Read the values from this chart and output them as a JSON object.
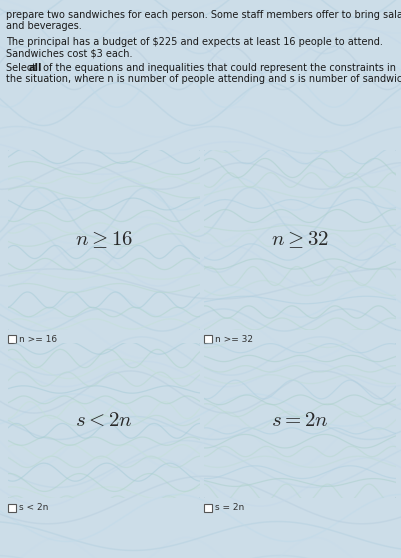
{
  "bg_color": "#ccdde8",
  "card_bg": "#d4e8f0",
  "text_color": "#1a1a1a",
  "header_lines": [
    "prepare two sandwiches for each person. Some staff members offer to bring salads",
    "and beverages.",
    "The principal has a budget of $225 and expects at least 16 people to attend.",
    "Sandwiches cost $3 each.",
    "Select ",
    "all",
    " of the equations and inequalities that could represent the constraints in",
    "the situation, where n is number of people attending and s is number of sandwiches."
  ],
  "card_math": [
    "$n \\geq 16$",
    "$n \\geq 32$",
    "$s < 2n$",
    "$s = 2n$"
  ],
  "card_labels": [
    "n >= 16",
    "n >= 32",
    "s < 2n",
    "s = 2n"
  ],
  "wave_bg_colors": [
    "#b8cede",
    "#c4d8e8",
    "#bcd4e4",
    "#c8dcea",
    "#b4d0e0",
    "#c0dae8"
  ],
  "card_wave_colors_0": [
    "#a8ccd8",
    "#b8d8d0",
    "#c4e0d8",
    "#b0d4cc"
  ],
  "card_wave_colors_1": [
    "#b0d0e0",
    "#c0dcd8",
    "#b8d8d0",
    "#acd0cc"
  ],
  "math_fontsize": 15,
  "label_fontsize": 6.5,
  "header_fontsize": 7.0
}
